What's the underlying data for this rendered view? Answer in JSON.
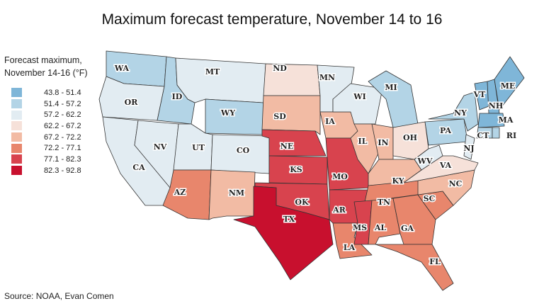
{
  "title": "Maximum forecast temperature, November 14 to 16",
  "legend": {
    "title_line1": "Forecast maximum,",
    "title_line2": "November 14-16 (°F)",
    "bins": [
      {
        "label": "43.8 - 51.4",
        "color": "#7fb6d8"
      },
      {
        "label": "51.4 - 57.2",
        "color": "#b3d4e6"
      },
      {
        "label": "57.2 - 62.2",
        "color": "#e2ecf2"
      },
      {
        "label": "62.2 - 67.2",
        "color": "#f6e1d9"
      },
      {
        "label": "67.2 - 72.2",
        "color": "#f2bba4"
      },
      {
        "label": "72.2 - 77.1",
        "color": "#e8866c"
      },
      {
        "label": "77.1 - 82.3",
        "color": "#d8434e"
      },
      {
        "label": "82.3 - 92.8",
        "color": "#c8102e"
      }
    ]
  },
  "states": [
    {
      "abbr": "WA",
      "bin": 1
    },
    {
      "abbr": "OR",
      "bin": 2
    },
    {
      "abbr": "CA",
      "bin": 2
    },
    {
      "abbr": "NV",
      "bin": 2
    },
    {
      "abbr": "ID",
      "bin": 1
    },
    {
      "abbr": "MT",
      "bin": 2
    },
    {
      "abbr": "WY",
      "bin": 1
    },
    {
      "abbr": "UT",
      "bin": 2
    },
    {
      "abbr": "CO",
      "bin": 2
    },
    {
      "abbr": "AZ",
      "bin": 5
    },
    {
      "abbr": "NM",
      "bin": 4
    },
    {
      "abbr": "ND",
      "bin": 3
    },
    {
      "abbr": "SD",
      "bin": 4
    },
    {
      "abbr": "NE",
      "bin": 6
    },
    {
      "abbr": "KS",
      "bin": 6
    },
    {
      "abbr": "OK",
      "bin": 6
    },
    {
      "abbr": "TX",
      "bin": 7
    },
    {
      "abbr": "MN",
      "bin": 2
    },
    {
      "abbr": "IA",
      "bin": 4
    },
    {
      "abbr": "MO",
      "bin": 6
    },
    {
      "abbr": "AR",
      "bin": 6
    },
    {
      "abbr": "LA",
      "bin": 5
    },
    {
      "abbr": "WI",
      "bin": 2
    },
    {
      "abbr": "IL",
      "bin": 4
    },
    {
      "abbr": "MI",
      "bin": 1
    },
    {
      "abbr": "IN",
      "bin": 4
    },
    {
      "abbr": "OH",
      "bin": 3
    },
    {
      "abbr": "KY",
      "bin": 4
    },
    {
      "abbr": "TN",
      "bin": 5
    },
    {
      "abbr": "MS",
      "bin": 6
    },
    {
      "abbr": "AL",
      "bin": 5
    },
    {
      "abbr": "GA",
      "bin": 5
    },
    {
      "abbr": "FL",
      "bin": 5
    },
    {
      "abbr": "SC",
      "bin": 5
    },
    {
      "abbr": "NC",
      "bin": 4
    },
    {
      "abbr": "VA",
      "bin": 3
    },
    {
      "abbr": "WV",
      "bin": 2
    },
    {
      "abbr": "PA",
      "bin": 1
    },
    {
      "abbr": "NY",
      "bin": 1
    },
    {
      "abbr": "VT",
      "bin": 0
    },
    {
      "abbr": "NH",
      "bin": 0
    },
    {
      "abbr": "ME",
      "bin": 0
    },
    {
      "abbr": "MA",
      "bin": 0
    },
    {
      "abbr": "CT",
      "bin": 1
    },
    {
      "abbr": "RI",
      "bin": 1
    },
    {
      "abbr": "NJ",
      "bin": 2
    }
  ],
  "source": "Source: NOAA, Evan Comen"
}
